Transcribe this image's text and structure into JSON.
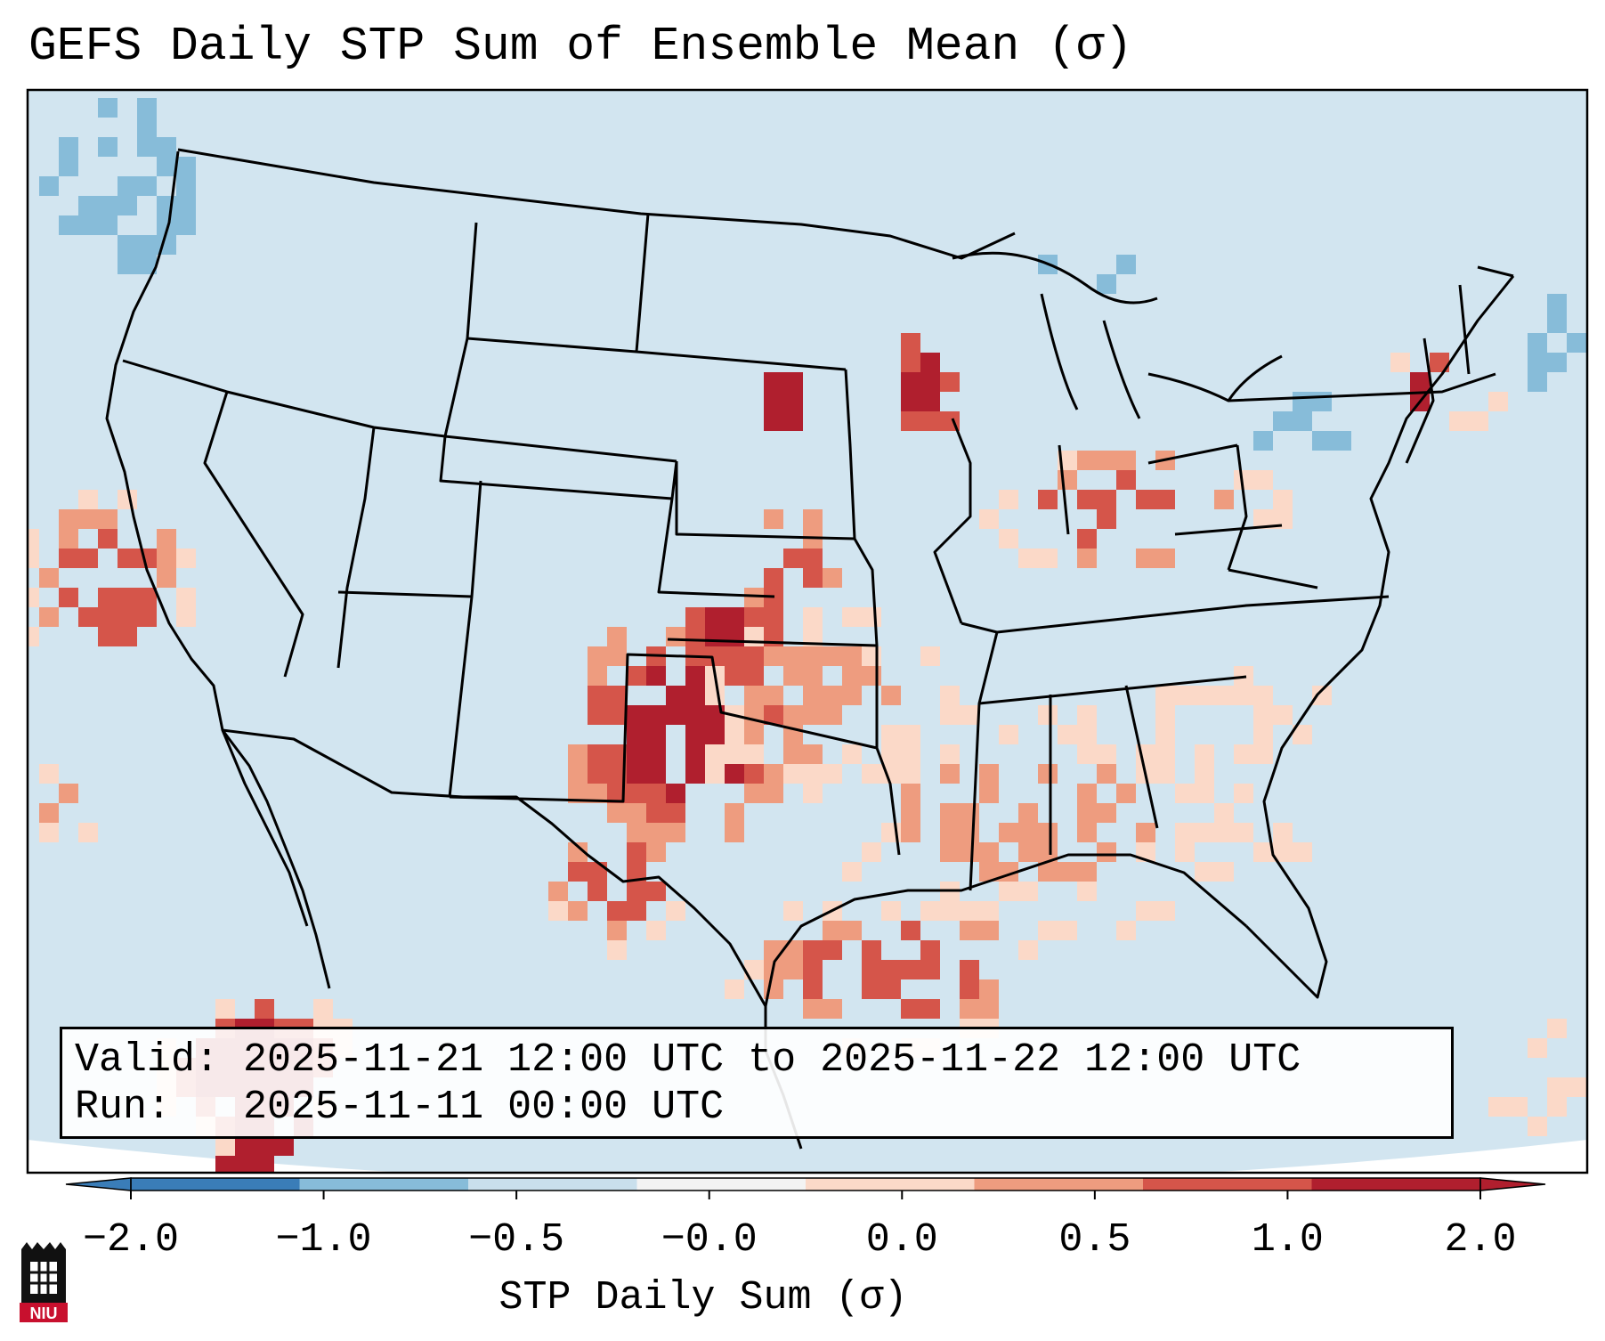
{
  "title": "GEFS Daily STP Sum of Ensemble Mean (σ)",
  "info": {
    "valid": "Valid: 2025-11-21 12:00 UTC to 2025-11-22 12:00 UTC",
    "run": "Run:   2025-11-11 00:00 UTC"
  },
  "colorbar": {
    "label": "STP Daily Sum (σ)",
    "ticks": [
      "−2.0",
      "−1.0",
      "−0.5",
      "−0.0",
      "0.0",
      "0.5",
      "1.0",
      "2.0"
    ],
    "colors": [
      "#3a7db8",
      "#87bcd9",
      "#c9dfec",
      "#f3f3f3",
      "#fbd9c8",
      "#ee9c7f",
      "#d5554a",
      "#b01f2e"
    ]
  },
  "map": {
    "projection": "Lambert conformal CONUS",
    "background_color": "#d2e5f0",
    "hotspots": [
      "southern-plains",
      "upper-mississippi",
      "baja-california",
      "gulf-coast"
    ]
  },
  "logo": {
    "text": "NIU",
    "color": "#c8102e"
  }
}
